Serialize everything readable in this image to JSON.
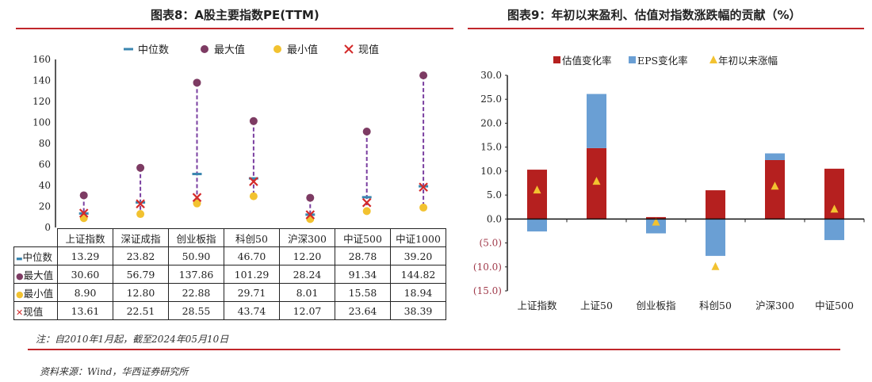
{
  "left": {
    "title": "图表8：A股主要指数PE(TTM)",
    "note": "注：自2010年1月起，截至2024年05月10日",
    "source": "资料来源：Wind，华西证券研究所"
  },
  "right": {
    "title": "图表9：年初以来盈利、估值对指数涨跌幅的贡献（%）"
  },
  "chart_data": [
    {
      "type": "scatter",
      "title": "图表8：A股主要指数PE(TTM)",
      "categories": [
        "上证指数",
        "深证成指",
        "创业板指",
        "科创50",
        "沪深300",
        "中证500",
        "中证1000"
      ],
      "ylim": [
        0,
        160
      ],
      "yticks": [
        0,
        20,
        40,
        60,
        80,
        100,
        120,
        140,
        160
      ],
      "legend_position": "top",
      "series": [
        {
          "name": "中位数",
          "marker": "dash",
          "color": "#3a86b0",
          "values": [
            13.29,
            23.82,
            50.9,
            46.7,
            12.2,
            28.78,
            39.2
          ],
          "labels": [
            "13.29",
            "23.82",
            "50.90",
            "46.70",
            "12.20",
            "28.78",
            "39.20"
          ]
        },
        {
          "name": "最大值",
          "marker": "circle",
          "color": "#7d3b63",
          "values": [
            30.6,
            56.79,
            137.86,
            101.29,
            28.24,
            91.34,
            144.82
          ],
          "labels": [
            "30.60",
            "56.79",
            "137.86",
            "101.29",
            "28.24",
            "91.34",
            "144.82"
          ]
        },
        {
          "name": "最小值",
          "marker": "circle",
          "color": "#f2c230",
          "values": [
            8.9,
            12.8,
            22.88,
            29.71,
            8.01,
            15.58,
            18.94
          ],
          "labels": [
            "8.90",
            "12.80",
            "22.88",
            "29.71",
            "8.01",
            "15.58",
            "18.94"
          ]
        },
        {
          "name": "现值",
          "marker": "x",
          "color": "#d42a2a",
          "values": [
            13.61,
            22.51,
            28.55,
            43.74,
            12.07,
            23.64,
            38.39
          ],
          "labels": [
            "13.61",
            "22.51",
            "28.55",
            "43.74",
            "12.07",
            "23.64",
            "38.39"
          ]
        }
      ],
      "range_line_color": "#7a3fa0"
    },
    {
      "type": "bar",
      "title": "图表9：年初以来盈利、估值对指数涨跌幅的贡献（%）",
      "categories": [
        "上证指数",
        "上证50",
        "创业板指",
        "科创50",
        "沪深300",
        "中证500"
      ],
      "ylim": [
        -15,
        30
      ],
      "yticks": [
        "(15.0)",
        "(10.0)",
        "(5.0)",
        "0.0",
        "5.0",
        "10.0",
        "15.0",
        "20.0",
        "25.0",
        "30.0"
      ],
      "ytick_values": [
        -15,
        -10,
        -5,
        0,
        5,
        10,
        15,
        20,
        25,
        30
      ],
      "legend_position": "top",
      "series": [
        {
          "name": "估值变化率",
          "kind": "bar",
          "color": "#b5201f",
          "values": [
            10.3,
            14.8,
            0.4,
            6.0,
            12.3,
            10.5
          ]
        },
        {
          "name": "EPS变化率",
          "kind": "bar",
          "color": "#6a9fd4",
          "values": [
            -2.6,
            11.3,
            -3.0,
            -7.7,
            1.4,
            -4.4
          ]
        },
        {
          "name": "年初以来涨幅",
          "kind": "triangle",
          "color": "#f2c230",
          "values": [
            6.0,
            7.8,
            -0.7,
            -10.0,
            6.8,
            2.0
          ]
        }
      ]
    }
  ]
}
